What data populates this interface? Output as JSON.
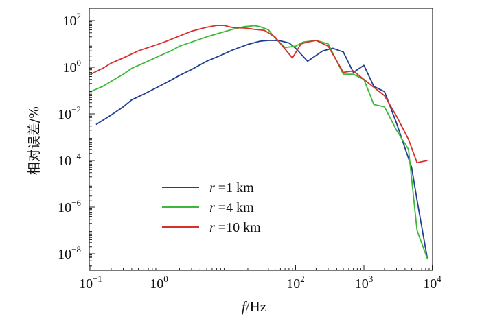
{
  "chart_data": {
    "type": "line",
    "xlabel": {
      "italic": "f",
      "rest": "/Hz"
    },
    "ylabel": "相对误差/%",
    "x_scale": "log",
    "y_scale": "log",
    "xlim": [
      0.1,
      10000
    ],
    "ylim": [
      1e-09,
      100
    ],
    "x_ticks": [
      {
        "value": 0.1,
        "base": "10",
        "exp": "−1"
      },
      {
        "value": 1,
        "base": "10",
        "exp": "0"
      },
      {
        "value": 100,
        "base": "10",
        "exp": "2"
      },
      {
        "value": 1000,
        "base": "10",
        "exp": "3"
      },
      {
        "value": 10000,
        "base": "10",
        "exp": "4"
      }
    ],
    "y_ticks": [
      {
        "value": 100,
        "base": "10",
        "exp": "2"
      },
      {
        "value": 1,
        "base": "10",
        "exp": "0"
      },
      {
        "value": 0.01,
        "base": "10",
        "exp": "−2"
      },
      {
        "value": 0.0001,
        "base": "10",
        "exp": "−4"
      },
      {
        "value": 1e-06,
        "base": "10",
        "exp": "−6"
      },
      {
        "value": 1e-08,
        "base": "10",
        "exp": "−8"
      }
    ],
    "grid": false,
    "legend_position": "lower-left",
    "series": [
      {
        "name": "r =1 km",
        "label_italic": "r",
        "label_rest": " =1 km",
        "color": "#1f3f8f",
        "x": [
          0.12,
          0.2,
          0.3,
          0.4,
          0.6,
          1,
          1.5,
          2,
          3,
          5,
          8,
          12,
          20,
          30,
          40,
          50,
          60,
          80,
          100,
          150,
          250,
          350,
          500,
          700,
          1000,
          1400,
          2000,
          3000,
          5000,
          6000,
          8500
        ],
        "y": [
          0.0035,
          0.009,
          0.02,
          0.04,
          0.07,
          0.15,
          0.28,
          0.45,
          0.8,
          1.8,
          3.2,
          5.5,
          9.5,
          13,
          14,
          14,
          13.5,
          11,
          6.5,
          1.8,
          5,
          6.5,
          4.5,
          0.6,
          1.2,
          0.15,
          0.09,
          0.004,
          5e-05,
          2e-06,
          6e-09
        ]
      },
      {
        "name": "r =4 km",
        "label_italic": "r",
        "label_rest": " =4 km",
        "color": "#3db83a",
        "x": [
          0.1,
          0.15,
          0.2,
          0.3,
          0.4,
          0.6,
          1,
          1.5,
          2,
          3,
          5,
          8,
          12,
          18,
          25,
          30,
          40,
          50,
          70,
          100,
          130,
          200,
          300,
          500,
          700,
          1000,
          1400,
          2000,
          3000,
          4500,
          6000,
          8500
        ],
        "y": [
          0.09,
          0.15,
          0.25,
          0.5,
          0.9,
          1.5,
          3,
          5,
          8,
          12,
          20,
          30,
          42,
          55,
          60,
          55,
          40,
          18,
          7,
          8,
          12,
          14,
          10,
          0.5,
          0.5,
          0.3,
          0.025,
          0.02,
          0.002,
          0.0003,
          1e-07,
          6e-09
        ]
      },
      {
        "name": "r =10 km",
        "label_italic": "r",
        "label_rest": " =10 km",
        "color": "#d9302c",
        "x": [
          0.1,
          0.15,
          0.2,
          0.3,
          0.5,
          0.8,
          1.2,
          2,
          3,
          5,
          7,
          9,
          12,
          18,
          25,
          35,
          50,
          70,
          90,
          120,
          150,
          200,
          300,
          500,
          700,
          1000,
          2000,
          3000,
          4500,
          6000,
          8500
        ],
        "y": [
          0.5,
          0.9,
          1.5,
          2.5,
          5,
          8,
          12,
          22,
          35,
          52,
          62,
          62,
          50,
          48,
          42,
          38,
          20,
          6,
          2.5,
          10,
          12,
          14,
          8,
          0.6,
          0.7,
          0.3,
          0.06,
          0.008,
          0.0008,
          8e-05,
          0.0001
        ]
      }
    ]
  }
}
